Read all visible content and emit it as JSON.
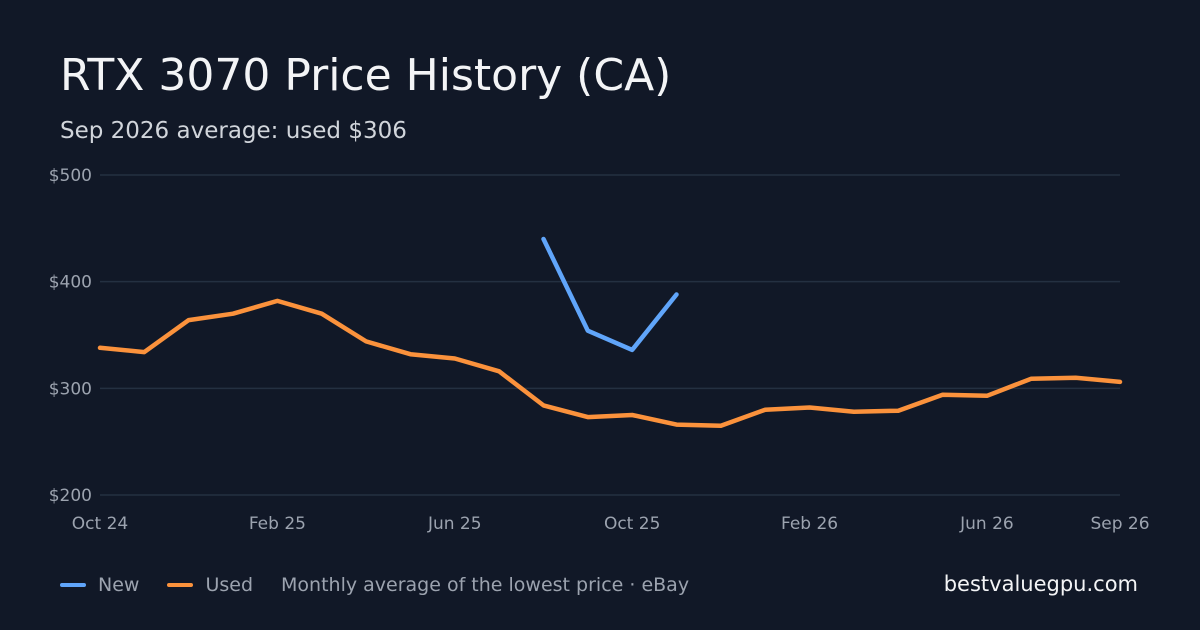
{
  "title": "RTX 3070 Price History (CA)",
  "subtitle": "Sep 2026 average: used $306",
  "site": "bestvaluegpu.com",
  "note": "Monthly average of the lowest price · eBay",
  "colors": {
    "new": "#60a5fa",
    "used": "#fb923c",
    "grid": "#243041",
    "axis_text": "#9ca3af"
  },
  "chart_data": {
    "type": "line",
    "x": [
      "Oct 24",
      "Nov 24",
      "Dec 24",
      "Jan 25",
      "Feb 25",
      "Mar 25",
      "Apr 25",
      "May 25",
      "Jun 25",
      "Jul 25",
      "Aug 25",
      "Sep 25",
      "Oct 25",
      "Nov 25",
      "Dec 25",
      "Jan 26",
      "Feb 26",
      "Mar 26",
      "Apr 26",
      "May 26",
      "Jun 26",
      "Jul 26",
      "Aug 26",
      "Sep 26"
    ],
    "x_tick_labels": [
      "Oct 24",
      "Feb 25",
      "Jun 25",
      "Oct 25",
      "Feb 26",
      "Jun 26",
      "Sep 26"
    ],
    "x_tick_indices": [
      0,
      4,
      8,
      12,
      16,
      20,
      23
    ],
    "y_tick_labels": [
      "$200",
      "$300",
      "$400",
      "$500"
    ],
    "y_tick_values": [
      200,
      300,
      400,
      500
    ],
    "ylim": [
      200,
      500
    ],
    "grid": true,
    "legend_position": "bottom-left",
    "series": [
      {
        "name": "New",
        "color": "#60a5fa",
        "values": [
          null,
          null,
          null,
          null,
          null,
          null,
          null,
          null,
          null,
          null,
          440,
          354,
          336,
          388,
          null,
          null,
          null,
          null,
          null,
          null,
          null,
          null,
          null,
          null
        ]
      },
      {
        "name": "Used",
        "color": "#fb923c",
        "values": [
          338,
          334,
          364,
          370,
          382,
          370,
          344,
          332,
          328,
          316,
          284,
          273,
          275,
          266,
          265,
          280,
          282,
          278,
          279,
          294,
          293,
          309,
          310,
          306
        ]
      }
    ]
  }
}
